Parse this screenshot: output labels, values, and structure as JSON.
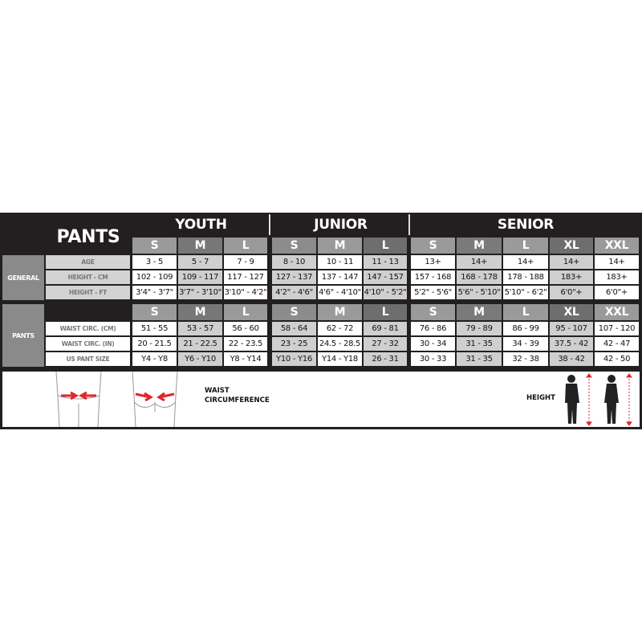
{
  "title": "PANTS",
  "groups": [
    {
      "name": "YOUTH",
      "sizes": [
        "S",
        "M",
        "L"
      ]
    },
    {
      "name": "JUNIOR",
      "sizes": [
        "S",
        "M",
        "L"
      ]
    },
    {
      "name": "SENIOR",
      "sizes": [
        "S",
        "M",
        "L",
        "XL",
        "XXL"
      ]
    }
  ],
  "sections": [
    {
      "label": "GENERAL",
      "rows": [
        {
          "label": "AGE",
          "values": [
            "3 - 5",
            "5 - 7",
            "7 - 9",
            "8 - 10",
            "10 - 11",
            "11 - 13",
            "13+",
            "14+",
            "14+",
            "14+",
            "14+"
          ]
        },
        {
          "label": "HEIGHT - CM",
          "values": [
            "102 - 109",
            "109 - 117",
            "117 - 127",
            "127 - 137",
            "137 - 147",
            "147 - 157",
            "157 - 168",
            "168 - 178",
            "178 - 188",
            "183+",
            "183+"
          ]
        },
        {
          "label": "HEIGHT - FT",
          "values": [
            "3'4\" - 3'7\"",
            "3'7\" - 3'10\"",
            "3'10\" - 4'2\"",
            "4'2\" - 4'6\"",
            "4'6\" - 4'10\"",
            "4'10\" - 5'2\"",
            "5'2\" - 5'6\"",
            "5'6\" - 5'10\"",
            "5'10\" - 6'2\"",
            "6'0\"+",
            "6'0\"+"
          ]
        }
      ]
    },
    {
      "label": "PANTS",
      "rows": [
        {
          "label": "WAIST CIRC. (CM)",
          "values": [
            "51 - 55",
            "53 - 57",
            "56 - 60",
            "58 - 64",
            "62 - 72",
            "69 - 81",
            "76 - 86",
            "79 - 89",
            "86 - 99",
            "95 - 107",
            "107 - 120"
          ]
        },
        {
          "label": "WAIST CIRC. (IN)",
          "values": [
            "20 - 21.5",
            "21 - 22.5",
            "22 - 23.5",
            "23 - 25",
            "24.5 - 28.5",
            "27 - 32",
            "30 - 34",
            "31 - 35",
            "34 - 39",
            "37.5 - 42",
            "42 - 47"
          ]
        },
        {
          "label": "US PANT SIZE",
          "values": [
            "Y4 - Y8",
            "Y6 - Y10",
            "Y8 - Y14",
            "Y10 - Y16",
            "Y14 - Y18",
            "26 - 31",
            "30 - 33",
            "31 - 35",
            "32 - 38",
            "38 - 42",
            "42 - 50"
          ]
        }
      ]
    }
  ],
  "legend": {
    "waist": "WAIST\nCIRCUMFERENCE",
    "height": "HEIGHT"
  },
  "colors": {
    "arrow": "#e0262b",
    "background": "#231f20"
  }
}
